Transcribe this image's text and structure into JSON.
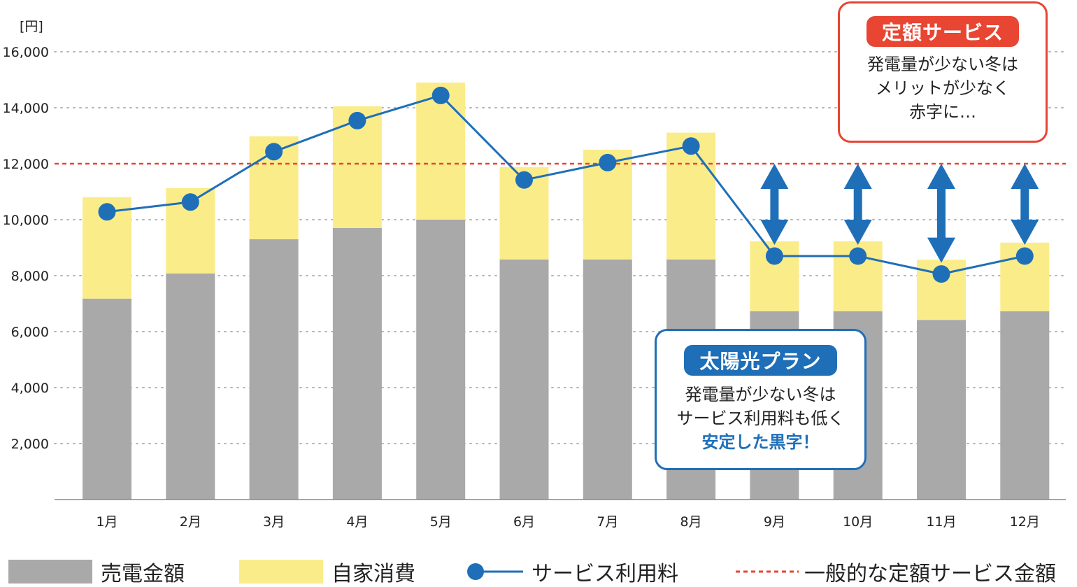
{
  "chart_data": {
    "type": "bar",
    "stacked": true,
    "unit_label": "[円]",
    "categories": [
      "1月",
      "2月",
      "3月",
      "4月",
      "5月",
      "6月",
      "7月",
      "8月",
      "9月",
      "10月",
      "11月",
      "12月"
    ],
    "series": [
      {
        "name": "売電金額",
        "kind": "bar",
        "color": "#a9a9a9",
        "values": [
          7180,
          8080,
          9300,
          9700,
          10000,
          8580,
          8580,
          8580,
          6730,
          6730,
          6420,
          6730
        ]
      },
      {
        "name": "自家消費",
        "kind": "bar",
        "color": "#fbec8a",
        "values": [
          3620,
          3050,
          3680,
          4350,
          4900,
          3300,
          3920,
          4530,
          2500,
          2500,
          2150,
          2450
        ]
      },
      {
        "name": "サービス利用料",
        "kind": "line",
        "color": "#1f6fb8",
        "values": [
          10280,
          10630,
          12430,
          13540,
          14440,
          11420,
          12040,
          12630,
          8700,
          8700,
          8060,
          8700
        ]
      }
    ],
    "reference_line": {
      "name": "一般的な定額サービス金額",
      "value": 12000,
      "color": "#e84532"
    },
    "ylim": [
      0,
      16000
    ],
    "yticks": [
      2000,
      4000,
      6000,
      8000,
      10000,
      12000,
      14000,
      16000
    ],
    "ytick_labels": [
      "2,000",
      "4,000",
      "6,000",
      "8,000",
      "10,000",
      "12,000",
      "14,000",
      "16,000"
    ],
    "grid": "dotted horizontal",
    "double_arrow_months": [
      "9月",
      "10月",
      "11月",
      "12月"
    ]
  },
  "callouts": {
    "flat": {
      "title": "定額サービス",
      "lines": [
        "発電量が少ない冬は",
        "メリットが少なく",
        "赤字に…"
      ]
    },
    "solar": {
      "title": "太陽光プラン",
      "lines": [
        "発電量が少ない冬は",
        "サービス利用料も低く",
        "安定した黒字！"
      ]
    }
  },
  "legend": {
    "items": [
      "売電金額",
      "自家消費",
      "サービス利用料",
      "一般的な定額サービス金額"
    ]
  }
}
